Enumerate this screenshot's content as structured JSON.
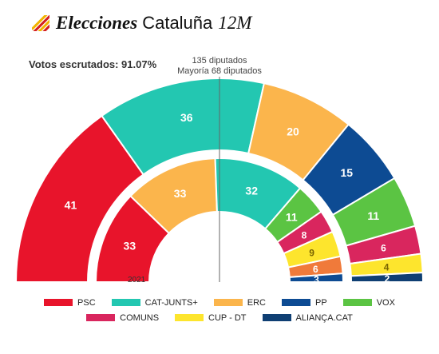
{
  "header": {
    "title": "Elecciones",
    "subtitle": "Cataluña",
    "date": "12M",
    "flag_colors": [
      "#f2b400",
      "#d41e1e"
    ]
  },
  "summary": {
    "votes_counted": "Votos escrutados: 91.07%",
    "total_seats": "135 diputados",
    "majority": "Mayoría 68 diputados"
  },
  "chart_data": {
    "type": "parliament",
    "total_seats": 135,
    "majority": 68,
    "rings": [
      {
        "name": "",
        "year": "",
        "seats": [
          {
            "party": "PSC",
            "value": 41
          },
          {
            "party": "CAT-JUNTS+",
            "value": 36
          },
          {
            "party": "ERC",
            "value": 20
          },
          {
            "party": "PP",
            "value": 15
          },
          {
            "party": "VOX",
            "value": 11
          },
          {
            "party": "COMUNS",
            "value": 6
          },
          {
            "party": "CUP - DT",
            "value": 4
          },
          {
            "party": "ALIANÇA.CAT",
            "value": 2
          }
        ]
      },
      {
        "name": "",
        "year": "2021",
        "seats": [
          {
            "party": "PSC",
            "value": 33
          },
          {
            "party": "ERC",
            "value": 33
          },
          {
            "party": "CAT-JUNTS+",
            "value": 32
          },
          {
            "party": "VOX",
            "value": 11
          },
          {
            "party": "COMUNS",
            "value": 8
          },
          {
            "party": "CUP - DT",
            "value": 9
          },
          {
            "party": "ALIANÇA.CAT",
            "value": 6
          },
          {
            "party": "PP",
            "value": 3
          }
        ]
      }
    ],
    "legend": [
      {
        "label": "PSC",
        "color": "#e8142b"
      },
      {
        "label": "CAT-JUNTS+",
        "color": "#23c7b1"
      },
      {
        "label": "ERC",
        "color": "#fbb54c"
      },
      {
        "label": "PP",
        "color": "#0d4b93"
      },
      {
        "label": "VOX",
        "color": "#5bc443"
      },
      {
        "label": "COMUNS",
        "color": "#d9265e"
      },
      {
        "label": "CUP - DT",
        "color": "#fde52d"
      },
      {
        "label": "ALIANÇA.CAT",
        "color": "#0f3f73"
      }
    ],
    "ring_colors_2021": {
      "ALIANÇA.CAT": "#f07a3a",
      "PP": "#0d4b93"
    }
  }
}
